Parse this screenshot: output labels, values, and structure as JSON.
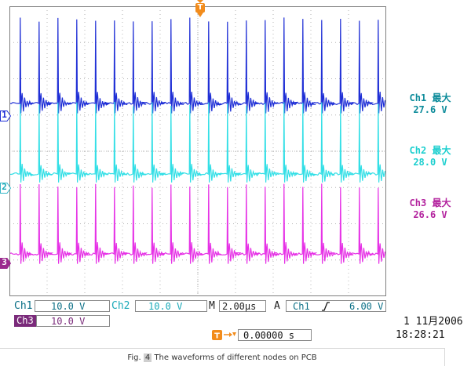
{
  "colors": {
    "ch1": "#1f2fd6",
    "ch2": "#33dfe6",
    "ch3": "#e632e6",
    "ch1_text": "#0c8b9a",
    "ch2_text": "#1ccfcf",
    "ch3_text": "#b3239e",
    "trigger": "#f28c1c",
    "grid": "#b4b4b4",
    "frame": "#7f7f7f",
    "bar_text": "#0a6f86"
  },
  "trigger_marker": {
    "glyph": "T",
    "icon": "trigger-position-icon"
  },
  "channel_markers": [
    {
      "label": "1",
      "channel": "ch1"
    },
    {
      "label": "2",
      "channel": "ch2"
    },
    {
      "label": "3",
      "channel": "ch3"
    }
  ],
  "readouts": [
    {
      "name": "Ch1 最大",
      "value": "27.6 V"
    },
    {
      "name": "Ch2 最大",
      "value": "28.0 V"
    },
    {
      "name": "Ch3 最大",
      "value": "26.6 V"
    }
  ],
  "bottom_bar": {
    "ch1_label": "Ch1",
    "ch1_scale": "10.0 V",
    "ch2_label": "Ch2",
    "ch2_scale": "10.0 V",
    "m_label": "M",
    "timebase": "2.00µs",
    "a_label": "A",
    "trig_source": "Ch1",
    "trig_slope_icon": "rising-edge-icon",
    "trig_level": "6.00 V",
    "ch3_label": "Ch3",
    "ch3_scale": "10.0 V",
    "date": "1 11月2006",
    "time": "18:28:21",
    "trigger_offset": "0.00000 s"
  },
  "waveform": {
    "pulses": 20
  },
  "caption": {
    "prefix": "Fig.",
    "number": "4",
    "text": "The waveforms of different nodes on PCB"
  }
}
